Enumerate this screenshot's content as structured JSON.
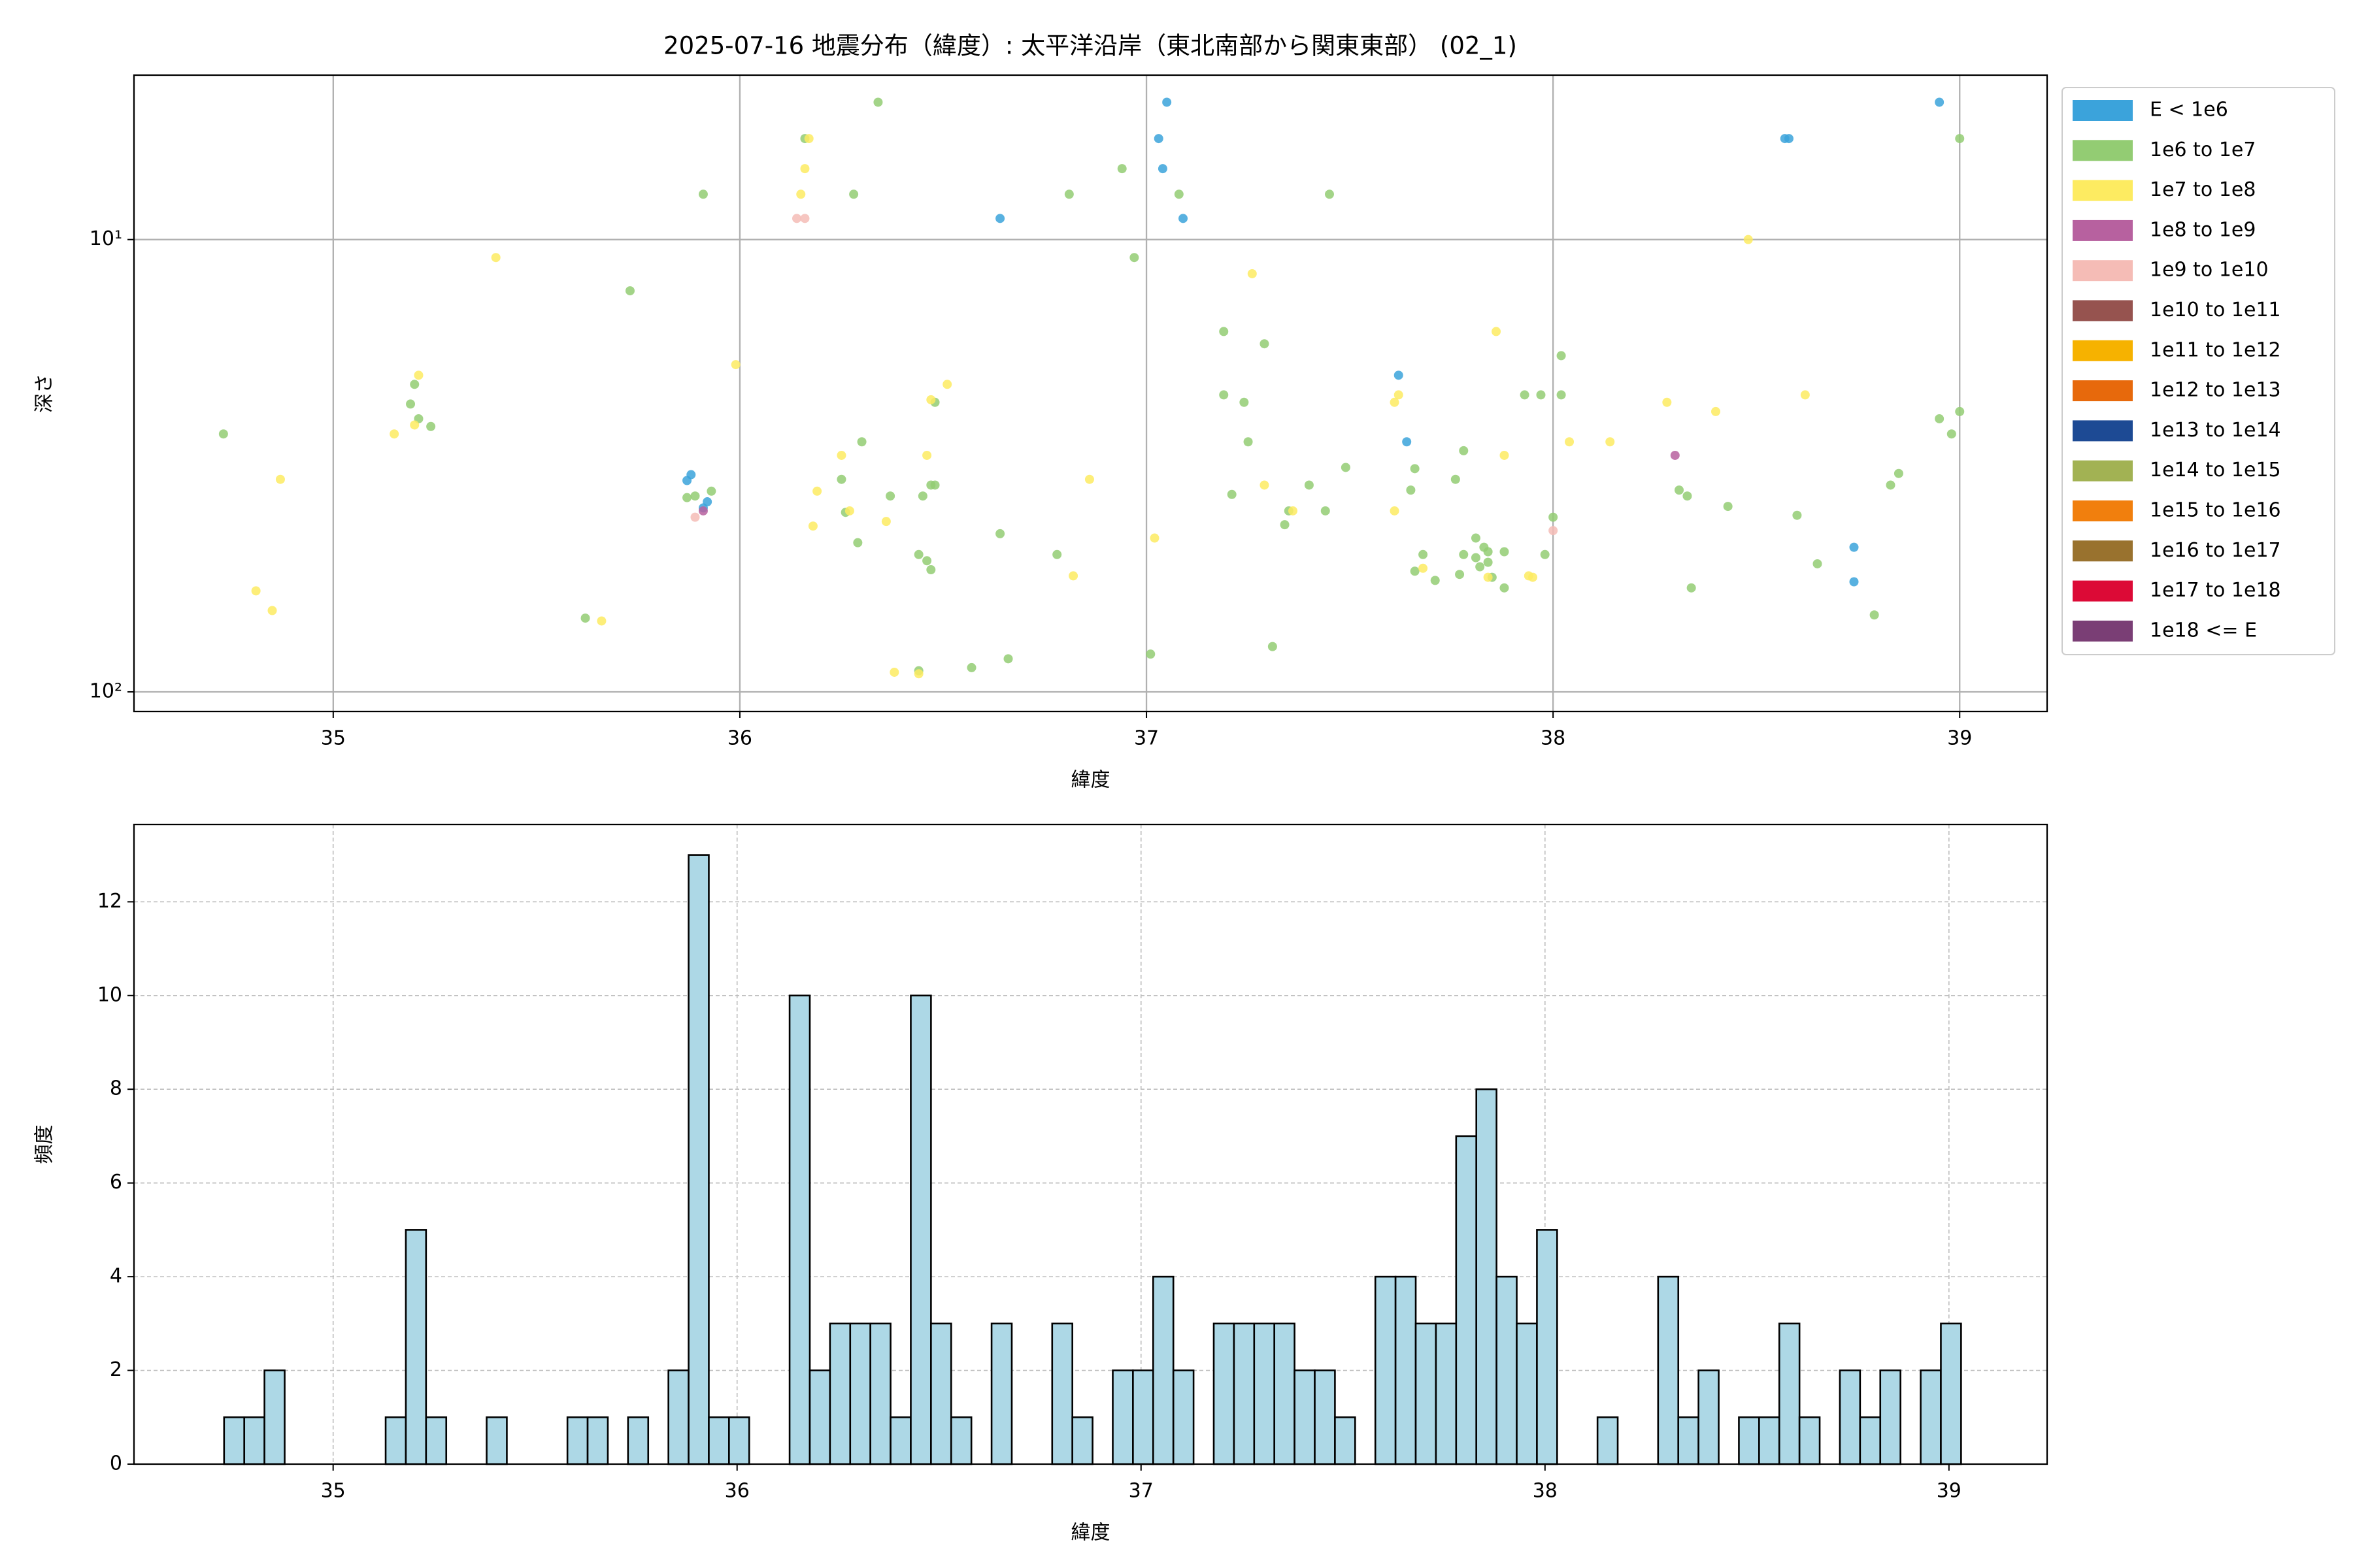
{
  "chart_data": [
    {
      "type": "scatter",
      "title": "2025-07-16 地震分布（緯度）: 太平洋沿岸（東北南部から関東東部） (02_1)",
      "xlabel": "緯度",
      "ylabel": "深さ",
      "xlim": [
        34.51,
        39.215
      ],
      "xticks": [
        35,
        36,
        37,
        38,
        39
      ],
      "ylim": [
        110.5,
        4.33
      ],
      "yscale": "log",
      "yticks": [
        {
          "value": 10,
          "label": "10¹"
        },
        {
          "value": 100,
          "label": "10²"
        }
      ],
      "grid": true,
      "grid_style": "solid",
      "legend": "right",
      "series": [
        {
          "name": "E < 1e6",
          "color": "#3ba3db",
          "x": [
            37.05,
            37.03,
            37.04,
            37.09,
            36.64,
            38.95,
            38.57,
            38.58,
            37.62,
            37.64,
            35.88,
            35.87,
            35.92,
            38.74,
            38.74,
            35.91
          ],
          "values": [
            4.97,
            5.98,
            6.97,
            8.98,
            8.98,
            4.97,
            5.98,
            5.98,
            19.95,
            28.0,
            33.1,
            34.1,
            38.0,
            47.9,
            57.1,
            39.2
          ]
        },
        {
          "name": "1e6 to 1e7",
          "color": "#93cc73",
          "x": [
            36.34,
            36.16,
            36.94,
            35.91,
            36.28,
            36.81,
            37.08,
            37.45,
            39.0,
            36.97,
            35.73,
            34.73,
            35.2,
            35.19,
            35.21,
            35.24,
            37.19,
            37.29,
            37.19,
            37.24,
            38.02,
            37.93,
            37.97,
            38.02,
            37.25,
            37.66,
            37.78,
            37.49,
            37.4,
            36.3,
            36.25,
            36.48,
            36.37,
            36.45,
            36.47,
            36.48,
            36.26,
            36.29,
            35.93,
            35.87,
            35.89,
            37.35,
            37.44,
            37.21,
            37.34,
            37.65,
            37.76,
            38.0,
            38.31,
            38.33,
            38.43,
            38.6,
            38.85,
            38.83,
            38.95,
            39.0,
            38.98,
            36.64,
            36.78,
            36.44,
            36.46,
            36.47,
            37.68,
            37.66,
            37.71,
            37.77,
            37.81,
            37.83,
            37.84,
            37.81,
            37.82,
            37.84,
            37.88,
            37.85,
            37.78,
            37.98,
            37.88,
            38.34,
            38.65,
            38.79,
            35.62,
            36.44,
            36.57,
            36.66,
            37.01,
            37.31
          ],
          "values": [
            4.97,
            5.98,
            6.97,
            7.94,
            7.94,
            7.94,
            7.94,
            7.94,
            5.98,
            10.96,
            12.98,
            26.9,
            20.9,
            23.1,
            24.9,
            25.9,
            15.97,
            17.0,
            22.05,
            22.9,
            18.06,
            22.05,
            22.05,
            22.05,
            28.0,
            32.1,
            29.3,
            31.9,
            34.9,
            28.0,
            33.9,
            22.9,
            36.9,
            36.9,
            34.9,
            34.9,
            40.1,
            46.8,
            36.0,
            37.2,
            36.9,
            39.8,
            39.8,
            36.6,
            42.7,
            35.8,
            33.9,
            41.1,
            35.8,
            36.9,
            38.9,
            40.7,
            32.9,
            34.9,
            24.9,
            24.0,
            26.9,
            44.7,
            49.7,
            49.7,
            51.3,
            53.7,
            49.7,
            54.1,
            56.7,
            55.0,
            45.7,
            47.9,
            49.0,
            50.5,
            52.9,
            51.7,
            49.0,
            55.8,
            49.7,
            49.7,
            58.9,
            58.9,
            52.1,
            67.6,
            68.7,
            89.8,
            88.4,
            84.5,
            82.5,
            79.4
          ]
        },
        {
          "name": "1e7 to 1e8",
          "color": "#fdeb61",
          "x": [
            36.17,
            36.16,
            36.15,
            35.4,
            35.21,
            35.2,
            35.15,
            35.99,
            36.51,
            36.47,
            34.87,
            34.81,
            34.85,
            35.66,
            36.38,
            36.44,
            36.46,
            36.25,
            36.86,
            36.19,
            36.27,
            36.36,
            36.18,
            36.82,
            37.02,
            37.26,
            37.29,
            37.36,
            37.62,
            37.61,
            37.68,
            37.61,
            37.88,
            37.86,
            38.04,
            38.28,
            38.4,
            38.48,
            38.62,
            38.14,
            37.84,
            37.94,
            37.95
          ],
          "values": [
            5.98,
            6.97,
            7.94,
            10.96,
            19.95,
            25.7,
            26.9,
            18.9,
            20.9,
            22.6,
            33.9,
            59.8,
            66.1,
            69.7,
            90.5,
            91.2,
            30.0,
            30.0,
            33.9,
            36.0,
            39.8,
            42.0,
            43.0,
            55.4,
            45.7,
            11.9,
            34.9,
            39.8,
            22.05,
            22.9,
            53.3,
            39.8,
            30.0,
            15.97,
            28.0,
            22.9,
            24.0,
            10.0,
            22.05,
            28.0,
            55.8,
            55.4,
            55.8
          ]
        },
        {
          "name": "1e8 to 1e9",
          "color": "#b7619f",
          "x": [
            38.3,
            35.91
          ],
          "values": [
            30.0,
            39.8
          ]
        },
        {
          "name": "1e9 to 1e10",
          "color": "#f5bcb6",
          "x": [
            36.14,
            36.16,
            35.89,
            38.0
          ],
          "values": [
            8.98,
            8.98,
            41.1,
            44.0
          ]
        },
        {
          "name": "1e10 to 1e11",
          "color": "#96534f",
          "x": [],
          "values": []
        },
        {
          "name": "1e11 to 1e12",
          "color": "#f6b200",
          "x": [],
          "values": []
        },
        {
          "name": "1e12 to 1e13",
          "color": "#e7690c",
          "x": [],
          "values": []
        },
        {
          "name": "1e13 to 1e14",
          "color": "#1d4a94",
          "x": [],
          "values": []
        },
        {
          "name": "1e14 to 1e15",
          "color": "#a2b253",
          "x": [],
          "values": []
        },
        {
          "name": "1e15 to 1e16",
          "color": "#f17f0d",
          "x": [],
          "values": []
        },
        {
          "name": "1e16 to 1e17",
          "color": "#99722e",
          "x": [],
          "values": []
        },
        {
          "name": "1e17 to 1e18",
          "color": "#dc0a36",
          "x": [],
          "values": []
        },
        {
          "name": "1e18 <= E",
          "color": "#7a3e75",
          "x": [],
          "values": []
        }
      ]
    },
    {
      "type": "histogram",
      "xlabel": "緯度",
      "ylabel": "頻度",
      "xlim": [
        34.507,
        39.243
      ],
      "xticks": [
        35,
        36,
        37,
        38,
        39
      ],
      "ylim": [
        0,
        13.65
      ],
      "yticks": [
        0,
        2,
        4,
        6,
        8,
        10,
        12
      ],
      "grid": true,
      "grid_style": "dashed",
      "color": "#add8e6",
      "edgecolor": "#000000",
      "bins": [
        34.73,
        34.78,
        34.83,
        34.88,
        34.93,
        34.98,
        35.03,
        35.08,
        35.13,
        35.18,
        35.23,
        35.28,
        35.33,
        35.38,
        35.43,
        35.48,
        35.53,
        35.58,
        35.63,
        35.68,
        35.73,
        35.78,
        35.83,
        35.88,
        35.93,
        35.98,
        36.03,
        36.08,
        36.13,
        36.18,
        36.23,
        36.28,
        36.33,
        36.38,
        36.43,
        36.48,
        36.53,
        36.58,
        36.63,
        36.68,
        36.73,
        36.78,
        36.83,
        36.88,
        36.93,
        36.98,
        37.03,
        37.08,
        37.13,
        37.18,
        37.23,
        37.28,
        37.33,
        37.38,
        37.43,
        37.48,
        37.53,
        37.58,
        37.63,
        37.68,
        37.73,
        37.78,
        37.83,
        37.88,
        37.93,
        37.98,
        38.03,
        38.08,
        38.13,
        38.18,
        38.23,
        38.28,
        38.33,
        38.38,
        38.43,
        38.48,
        38.53,
        38.58,
        38.63,
        38.68,
        38.73,
        38.78,
        38.83,
        38.88,
        38.93,
        38.98,
        39.03
      ],
      "values": [
        1,
        1,
        2,
        0,
        0,
        0,
        0,
        0,
        1,
        5,
        1,
        0,
        0,
        1,
        0,
        0,
        0,
        1,
        1,
        0,
        1,
        0,
        2,
        13,
        1,
        1,
        0,
        0,
        10,
        2,
        3,
        3,
        3,
        1,
        10,
        3,
        1,
        0,
        3,
        0,
        0,
        3,
        1,
        0,
        2,
        2,
        4,
        2,
        0,
        3,
        3,
        3,
        3,
        2,
        2,
        1,
        0,
        4,
        4,
        3,
        3,
        7,
        8,
        4,
        3,
        5,
        0,
        0,
        1,
        0,
        0,
        4,
        1,
        2,
        0,
        1,
        1,
        3,
        1,
        0,
        2,
        1,
        2,
        0,
        2,
        3
      ]
    }
  ]
}
